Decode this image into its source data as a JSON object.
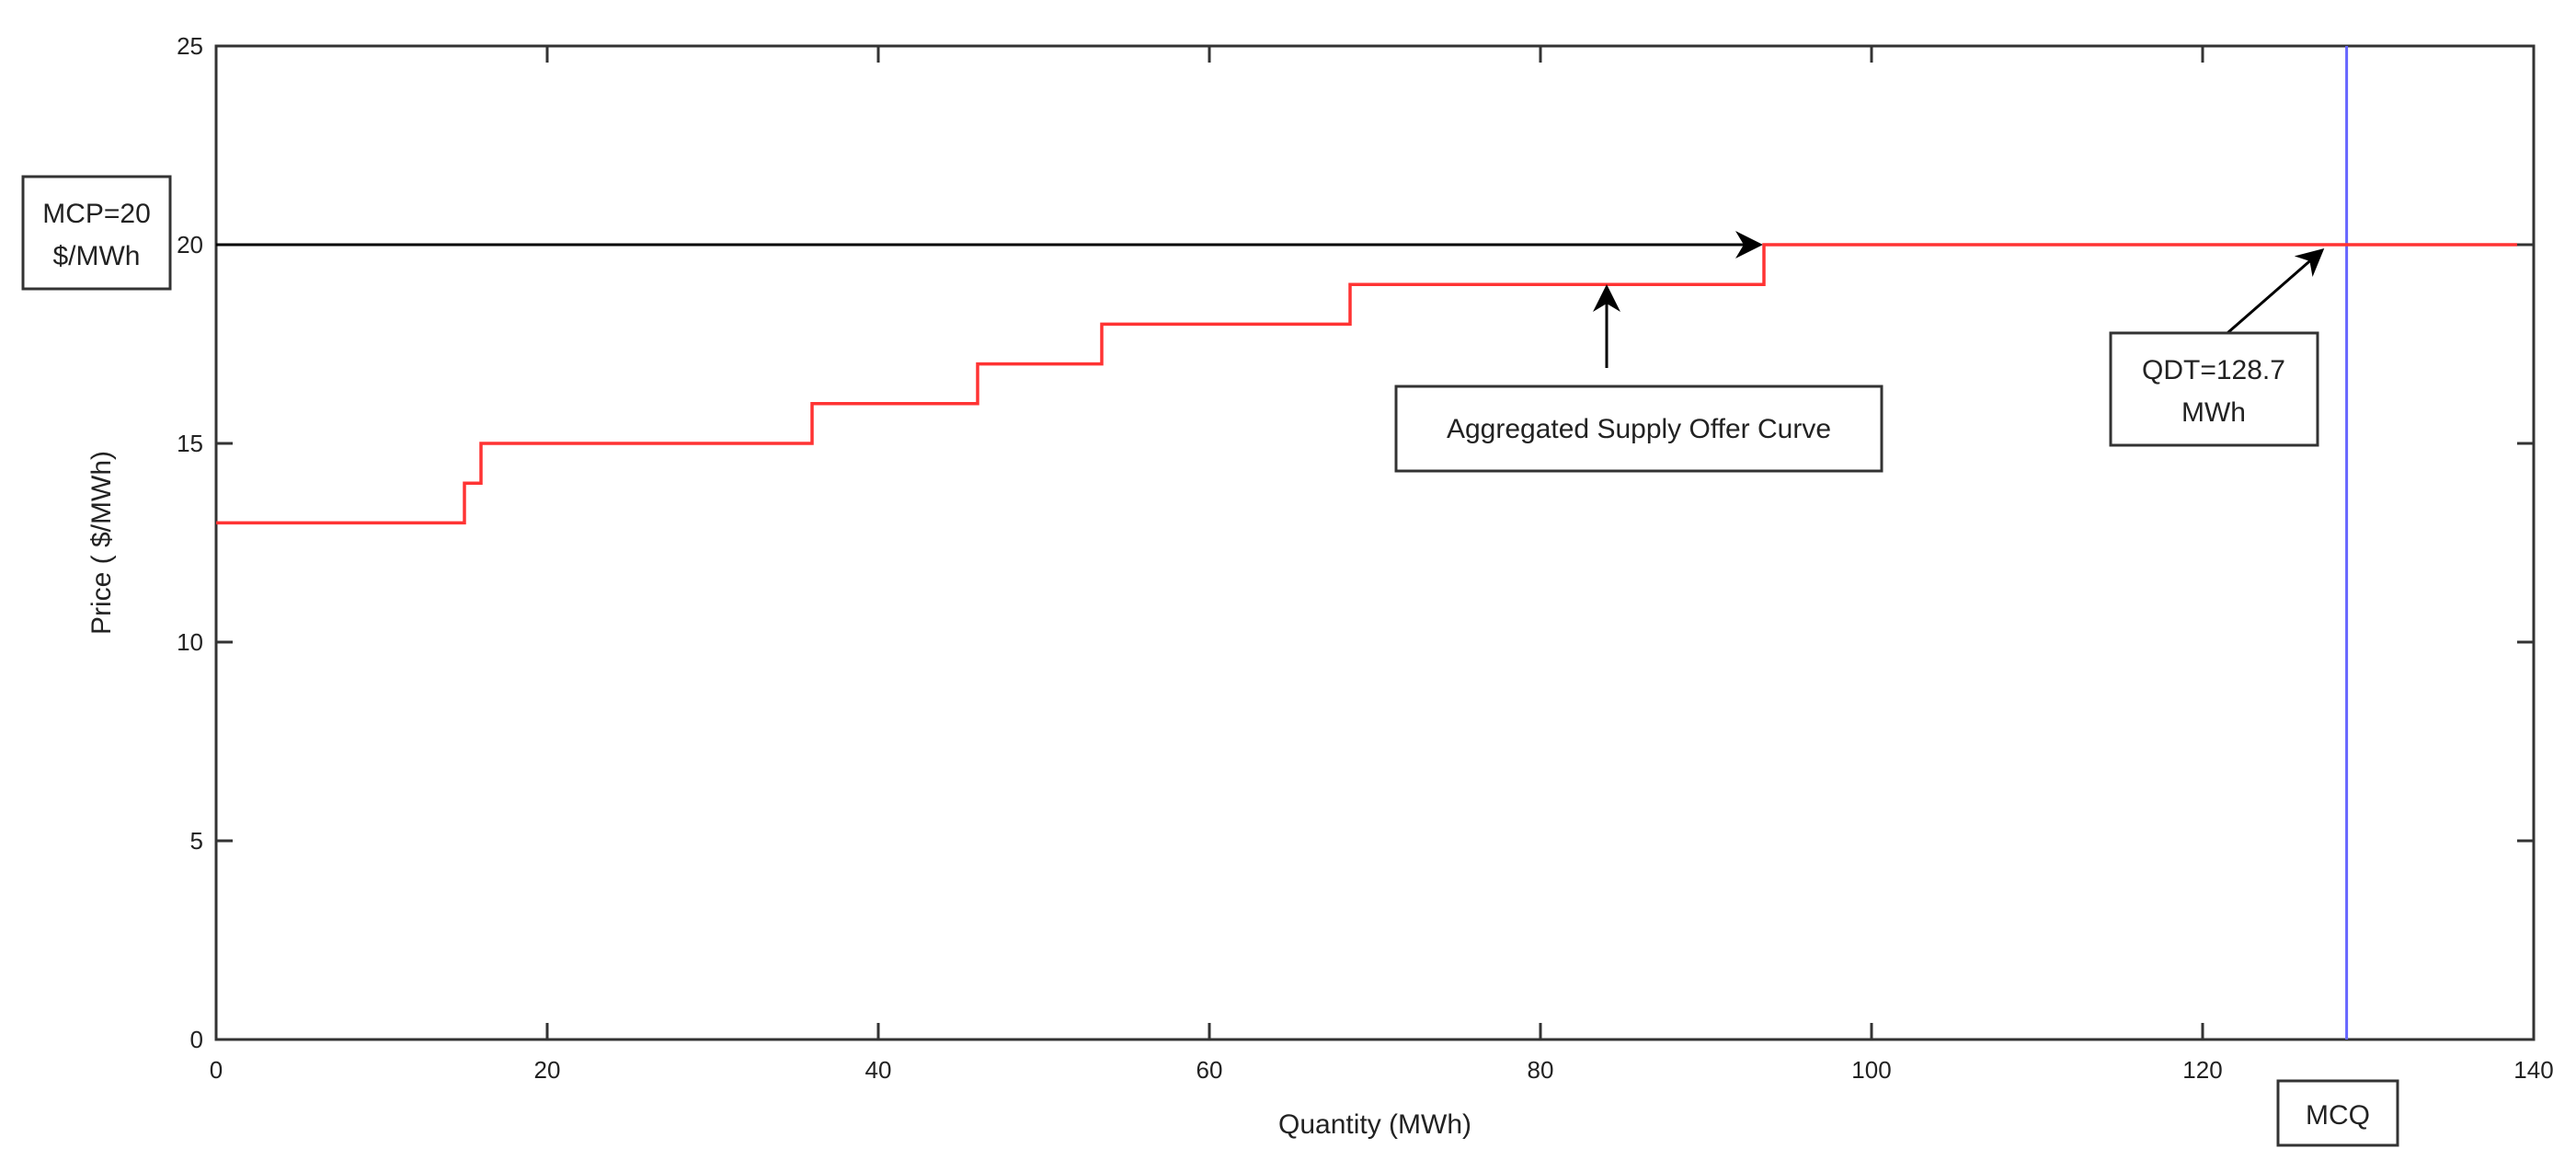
{
  "chart_data": {
    "type": "line",
    "title": "",
    "xlabel": "Quantity (MWh)",
    "ylabel": "Price ( $/MWh)",
    "xlim": [
      0,
      140
    ],
    "ylim": [
      0,
      25
    ],
    "xticks": [
      0,
      20,
      40,
      60,
      80,
      100,
      120,
      140
    ],
    "yticks": [
      0,
      5,
      10,
      15,
      20,
      25
    ],
    "grid": false,
    "series": [
      {
        "type": "step",
        "color": "#ff3333",
        "x": [
          0,
          15,
          15,
          16,
          16,
          36,
          36,
          46,
          46,
          53.5,
          53.5,
          68.5,
          68.5,
          93.5,
          93.5,
          139
        ],
        "y": [
          13,
          13,
          14,
          14,
          15,
          15,
          16,
          16,
          17,
          17,
          18,
          18,
          19,
          19,
          20,
          20
        ]
      }
    ],
    "reference_lines": [
      {
        "orientation": "horizontal",
        "value": 20,
        "x_from": 0,
        "x_to": 93.5,
        "color": "#000000",
        "arrow": true
      },
      {
        "orientation": "vertical",
        "value": 128.7,
        "color": "#6666ff"
      }
    ],
    "annotations": [
      {
        "id": "mcp",
        "lines": [
          "MCP=20",
          "$/MWh"
        ]
      },
      {
        "id": "supply",
        "lines": [
          "Aggregated Supply Offer Curve"
        ],
        "points_to": [
          84,
          19
        ]
      },
      {
        "id": "qdt",
        "lines": [
          "QDT=128.7",
          "MWh"
        ],
        "points_to": [
          128.2,
          20
        ]
      },
      {
        "id": "mcq",
        "lines": [
          "MCQ"
        ]
      }
    ]
  }
}
